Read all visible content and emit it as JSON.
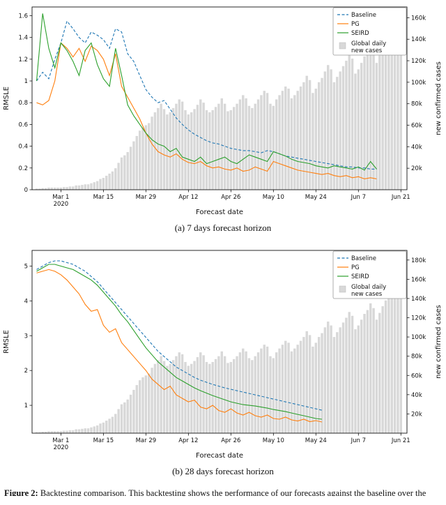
{
  "figure": {
    "caption_a": "(a) 7 days forecast horizon",
    "caption_b": "(b) 28 days forecast horizon",
    "bottom_caption_bold": "Figure 2:",
    "bottom_caption_text": "Backtesting comparison. This backtesting shows the performance of our forecasts against the baseline over the evaluation period."
  },
  "colors": {
    "baseline": "#1f77b4",
    "pg": "#ff7f0e",
    "seird": "#2ca02c",
    "bars": "#d8d8d8",
    "axis": "#111111"
  },
  "chart_data": [
    {
      "type": "line+bar",
      "title": "7 days forecast horizon",
      "xlabel": "Forecast date",
      "ylabel_left": "RMSLE",
      "ylabel_right": "new confirmed cases",
      "x_range": [
        -1.5,
        122
      ],
      "x_ticks": [
        8,
        22,
        36,
        50,
        64,
        78,
        92,
        106,
        120
      ],
      "x_tick_labels": [
        "Mar 1\n2020",
        "Mar 15",
        "Mar 29",
        "Apr 12",
        "Apr 26",
        "May 10",
        "May 24",
        "Jun 7",
        "Jun 21"
      ],
      "y_left_range": [
        0,
        1.68
      ],
      "y_left_ticks": [
        0,
        0.2,
        0.4,
        0.6,
        0.8,
        1.0,
        1.2,
        1.4,
        1.6
      ],
      "y_left_tick_labels": [
        "0",
        "0.2",
        "0.4",
        "0.6",
        "0.8",
        "1",
        "1.2",
        "1.4",
        "1.6"
      ],
      "y_right_range": [
        0,
        170
      ],
      "y_right_ticks": [
        20,
        40,
        60,
        80,
        100,
        120,
        140,
        160
      ],
      "y_right_tick_labels": [
        "20k",
        "40k",
        "60k",
        "80k",
        "100k",
        "120k",
        "140k",
        "160k"
      ],
      "legend": [
        {
          "label": "Baseline",
          "style": "dashed",
          "color_key": "baseline"
        },
        {
          "label": "PG",
          "style": "line",
          "color_key": "pg"
        },
        {
          "label": "SEIRD",
          "style": "line",
          "color_key": "seird"
        },
        {
          "label": "Global daily\nnew cases",
          "style": "patch",
          "color_key": "bars"
        }
      ],
      "series": [
        {
          "name": "Baseline",
          "color_key": "baseline",
          "dashed": true,
          "x_start": 0,
          "x_step": 2,
          "values": [
            1.0,
            1.08,
            1.02,
            1.2,
            1.35,
            1.55,
            1.48,
            1.4,
            1.35,
            1.45,
            1.42,
            1.38,
            1.3,
            1.48,
            1.45,
            1.25,
            1.18,
            1.05,
            0.92,
            0.85,
            0.8,
            0.82,
            0.74,
            0.66,
            0.6,
            0.55,
            0.51,
            0.48,
            0.45,
            0.43,
            0.42,
            0.4,
            0.38,
            0.37,
            0.36,
            0.36,
            0.35,
            0.34,
            0.36,
            0.35,
            0.33,
            0.31,
            0.3,
            0.29,
            0.28,
            0.27,
            0.26,
            0.25,
            0.24,
            0.23,
            0.22,
            0.21,
            0.21,
            0.2,
            0.2,
            0.19,
            0.19
          ]
        },
        {
          "name": "PG",
          "color_key": "pg",
          "dashed": false,
          "x_start": 0,
          "x_step": 2,
          "values": [
            0.8,
            0.78,
            0.82,
            1.0,
            1.35,
            1.3,
            1.22,
            1.3,
            1.18,
            1.32,
            1.28,
            1.2,
            1.05,
            1.25,
            0.95,
            0.85,
            0.75,
            0.65,
            0.52,
            0.42,
            0.35,
            0.32,
            0.3,
            0.33,
            0.28,
            0.25,
            0.24,
            0.26,
            0.22,
            0.2,
            0.21,
            0.19,
            0.18,
            0.2,
            0.17,
            0.18,
            0.21,
            0.19,
            0.17,
            0.26,
            0.24,
            0.22,
            0.2,
            0.18,
            0.17,
            0.16,
            0.15,
            0.14,
            0.15,
            0.13,
            0.12,
            0.13,
            0.11,
            0.12,
            0.1,
            0.11,
            0.1
          ]
        },
        {
          "name": "SEIRD",
          "color_key": "seird",
          "dashed": false,
          "x_start": 0,
          "x_step": 2,
          "values": [
            1.0,
            1.62,
            1.3,
            1.12,
            1.35,
            1.28,
            1.18,
            1.05,
            1.28,
            1.35,
            1.15,
            1.02,
            0.95,
            1.3,
            1.05,
            0.78,
            0.68,
            0.6,
            0.52,
            0.46,
            0.42,
            0.4,
            0.35,
            0.38,
            0.3,
            0.28,
            0.26,
            0.3,
            0.24,
            0.26,
            0.28,
            0.3,
            0.26,
            0.24,
            0.28,
            0.32,
            0.3,
            0.28,
            0.26,
            0.35,
            0.33,
            0.31,
            0.28,
            0.26,
            0.25,
            0.24,
            0.22,
            0.21,
            0.2,
            0.22,
            0.21,
            0.2,
            0.19,
            0.21,
            0.18,
            0.26,
            0.19
          ]
        }
      ],
      "bars": {
        "name": "Global daily new cases",
        "unit": "thousands",
        "x_start": 0,
        "x_step": 1,
        "values": [
          1,
          1,
          1.5,
          1.5,
          2,
          2,
          2,
          2,
          2,
          2.5,
          2.5,
          3,
          3,
          4,
          4,
          4.5,
          5,
          5,
          6,
          7,
          8,
          10,
          11,
          13,
          15,
          17,
          20,
          25,
          30,
          32,
          35,
          40,
          45,
          50,
          55,
          58,
          60,
          62,
          68,
          72,
          76,
          80,
          75,
          70,
          72,
          76,
          80,
          84,
          82,
          74,
          70,
          72,
          75,
          79,
          84,
          81,
          74,
          72,
          74,
          77,
          80,
          85,
          80,
          73,
          74,
          77,
          80,
          84,
          88,
          85,
          78,
          76,
          80,
          84,
          88,
          92,
          90,
          80,
          78,
          84,
          88,
          92,
          96,
          94,
          85,
          88,
          92,
          96,
          100,
          106,
          102,
          90,
          94,
          100,
          104,
          110,
          116,
          112,
          100,
          105,
          110,
          115,
          120,
          126,
          122,
          108,
          112,
          118,
          124,
          128,
          135,
          130,
          118,
          125,
          132,
          138,
          145,
          152,
          160,
          150,
          148
        ]
      }
    },
    {
      "type": "line+bar",
      "title": "28 days forecast horizon",
      "xlabel": "Forecast date",
      "ylabel_left": "RMSLE",
      "ylabel_right": "new confirmed cases",
      "x_range": [
        -1.5,
        122
      ],
      "x_ticks": [
        8,
        22,
        36,
        50,
        64,
        78,
        92,
        106,
        120
      ],
      "x_tick_labels": [
        "Mar 1\n2020",
        "Mar 15",
        "Mar 29",
        "Apr 12",
        "Apr 26",
        "May 10",
        "May 24",
        "Jun 7",
        "Jun 21"
      ],
      "y_left_range": [
        0.2,
        5.45
      ],
      "y_left_ticks": [
        1,
        2,
        3,
        4,
        5
      ],
      "y_left_tick_labels": [
        "1",
        "2",
        "3",
        "4",
        "5"
      ],
      "y_right_range": [
        0,
        190
      ],
      "y_right_ticks": [
        20,
        40,
        60,
        80,
        100,
        120,
        140,
        160,
        180
      ],
      "y_right_tick_labels": [
        "20k",
        "40k",
        "60k",
        "80k",
        "100k",
        "120k",
        "140k",
        "160k",
        "180k"
      ],
      "legend": [
        {
          "label": "Baseline",
          "style": "dashed",
          "color_key": "baseline"
        },
        {
          "label": "PG",
          "style": "line",
          "color_key": "pg"
        },
        {
          "label": "SEIRD",
          "style": "line",
          "color_key": "seird"
        },
        {
          "label": "Global daily\nnew cases",
          "style": "patch",
          "color_key": "bars"
        }
      ],
      "series": [
        {
          "name": "Baseline",
          "color_key": "baseline",
          "dashed": true,
          "x_start": 0,
          "x_step": 2,
          "values": [
            4.9,
            5.0,
            5.1,
            5.15,
            5.15,
            5.1,
            5.05,
            4.95,
            4.85,
            4.7,
            4.55,
            4.35,
            4.15,
            3.95,
            3.75,
            3.55,
            3.35,
            3.15,
            2.95,
            2.75,
            2.55,
            2.4,
            2.25,
            2.1,
            2.0,
            1.9,
            1.8,
            1.72,
            1.66,
            1.6,
            1.55,
            1.5,
            1.46,
            1.42,
            1.38,
            1.34,
            1.3,
            1.26,
            1.22,
            1.18,
            1.14,
            1.1,
            1.06,
            1.02,
            0.98,
            0.94,
            0.9,
            0.86
          ]
        },
        {
          "name": "PG",
          "color_key": "pg",
          "dashed": false,
          "x_start": 0,
          "x_step": 2,
          "values": [
            4.8,
            4.85,
            4.9,
            4.85,
            4.75,
            4.6,
            4.4,
            4.2,
            3.9,
            3.7,
            3.75,
            3.3,
            3.1,
            3.2,
            2.8,
            2.6,
            2.4,
            2.2,
            2.0,
            1.75,
            1.6,
            1.45,
            1.55,
            1.3,
            1.2,
            1.1,
            1.15,
            0.95,
            0.9,
            1.0,
            0.85,
            0.8,
            0.9,
            0.78,
            0.72,
            0.8,
            0.7,
            0.66,
            0.72,
            0.62,
            0.6,
            0.66,
            0.58,
            0.55,
            0.6,
            0.53,
            0.56,
            0.52
          ]
        },
        {
          "name": "SEIRD",
          "color_key": "seird",
          "dashed": false,
          "x_start": 0,
          "x_step": 2,
          "values": [
            4.85,
            4.95,
            5.05,
            5.05,
            5.0,
            4.95,
            4.9,
            4.8,
            4.7,
            4.6,
            4.45,
            4.25,
            4.05,
            3.85,
            3.6,
            3.4,
            3.15,
            2.9,
            2.65,
            2.45,
            2.25,
            2.1,
            1.95,
            1.8,
            1.7,
            1.6,
            1.5,
            1.42,
            1.35,
            1.28,
            1.22,
            1.16,
            1.1,
            1.06,
            1.02,
            1.0,
            0.98,
            0.95,
            0.92,
            0.88,
            0.85,
            0.82,
            0.78,
            0.74,
            0.7,
            0.66,
            0.62,
            0.6
          ]
        }
      ],
      "bars": {
        "name": "Global daily new cases",
        "unit": "thousands",
        "x_start": 0,
        "x_step": 1,
        "values": [
          1,
          1,
          1.5,
          1.5,
          2,
          2,
          2,
          2,
          2,
          2.5,
          2.5,
          3,
          3,
          4,
          4,
          4.5,
          5,
          5,
          6,
          7,
          8,
          10,
          11,
          13,
          15,
          17,
          20,
          25,
          30,
          32,
          35,
          40,
          45,
          50,
          55,
          58,
          60,
          62,
          68,
          72,
          76,
          80,
          75,
          70,
          72,
          76,
          80,
          84,
          82,
          74,
          70,
          72,
          75,
          79,
          84,
          81,
          74,
          72,
          74,
          77,
          80,
          85,
          80,
          73,
          74,
          77,
          80,
          84,
          88,
          85,
          78,
          76,
          80,
          84,
          88,
          92,
          90,
          80,
          78,
          84,
          88,
          92,
          96,
          94,
          85,
          88,
          92,
          96,
          100,
          106,
          102,
          90,
          94,
          100,
          104,
          110,
          116,
          112,
          100,
          105,
          110,
          115,
          120,
          126,
          122,
          108,
          112,
          118,
          124,
          128,
          135,
          130,
          118,
          125,
          132,
          138,
          145,
          152,
          160,
          150,
          148
        ]
      }
    }
  ]
}
